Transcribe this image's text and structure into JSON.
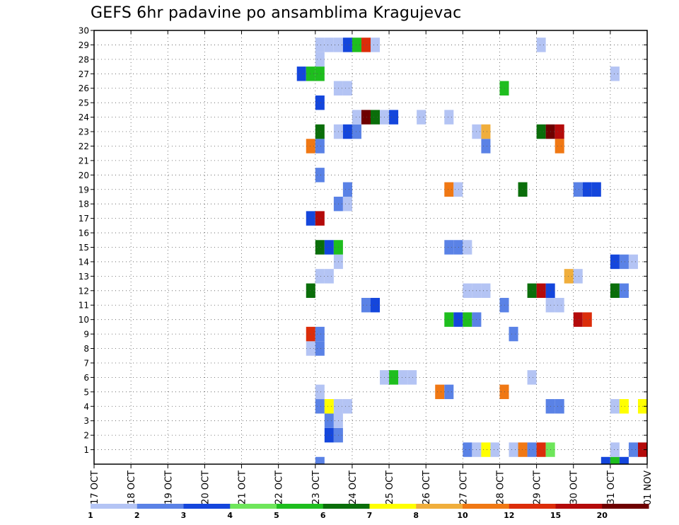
{
  "chart_data": {
    "type": "heatmap",
    "title": "GEFS 6hr padavine po ansamblima Kragujevac",
    "x_tick_labels": [
      "17 OCT",
      "18 OCT",
      "19 OCT",
      "20 OCT",
      "21 OCT",
      "22 OCT",
      "23 OCT",
      "24 OCT",
      "25 OCT",
      "26 OCT",
      "27 OCT",
      "28 OCT",
      "29 OCT",
      "30 OCT",
      "31 OCT",
      "01 NOV"
    ],
    "xlim": [
      0,
      15
    ],
    "y_tick_labels": [
      "1",
      "2",
      "3",
      "4",
      "5",
      "6",
      "7",
      "8",
      "9",
      "10",
      "11",
      "12",
      "13",
      "14",
      "15",
      "16",
      "17",
      "18",
      "19",
      "20",
      "21",
      "22",
      "23",
      "24",
      "25",
      "26",
      "27",
      "28",
      "29",
      "30"
    ],
    "ylim": [
      0,
      30
    ],
    "grid": true,
    "time_step_days": 0.25,
    "legend": {
      "placement": "bottom",
      "labels": [
        "1",
        "2",
        "3",
        "4",
        "5",
        "6",
        "7",
        "8",
        "10",
        "12",
        "15",
        "20"
      ],
      "colors": [
        "#b4c4f4",
        "#5a82e6",
        "#1446dc",
        "#6ee65a",
        "#1ebe1e",
        "#0a6e0a",
        "#ffff00",
        "#f0ae3c",
        "#f07814",
        "#dc2d0a",
        "#b40a0a",
        "#6e0000"
      ]
    },
    "cells": [
      {
        "member": 0,
        "t": 6.0,
        "v": 2
      },
      {
        "member": 0,
        "t": 13.75,
        "v": 3
      },
      {
        "member": 0,
        "t": 14.0,
        "v": 5
      },
      {
        "member": 0,
        "t": 14.25,
        "v": 3
      },
      {
        "member": 1,
        "t": 10.0,
        "v": 2
      },
      {
        "member": 1,
        "t": 10.25,
        "v": 1
      },
      {
        "member": 1,
        "t": 10.5,
        "v": 7
      },
      {
        "member": 1,
        "t": 10.75,
        "v": 1
      },
      {
        "member": 1,
        "t": 11.25,
        "v": 1
      },
      {
        "member": 1,
        "t": 11.5,
        "v": 10
      },
      {
        "member": 1,
        "t": 11.75,
        "v": 2
      },
      {
        "member": 1,
        "t": 12.0,
        "v": 12
      },
      {
        "member": 1,
        "t": 12.25,
        "v": 4
      },
      {
        "member": 1,
        "t": 14.0,
        "v": 1
      },
      {
        "member": 1,
        "t": 14.5,
        "v": 2
      },
      {
        "member": 1,
        "t": 14.75,
        "v": 15
      },
      {
        "member": 2,
        "t": 6.25,
        "v": 3
      },
      {
        "member": 2,
        "t": 6.5,
        "v": 2
      },
      {
        "member": 3,
        "t": 6.25,
        "v": 2
      },
      {
        "member": 3,
        "t": 6.5,
        "v": 1
      },
      {
        "member": 4,
        "t": 6.0,
        "v": 2
      },
      {
        "member": 4,
        "t": 6.25,
        "v": 7
      },
      {
        "member": 4,
        "t": 6.5,
        "v": 1
      },
      {
        "member": 4,
        "t": 6.75,
        "v": 1
      },
      {
        "member": 4,
        "t": 12.25,
        "v": 2
      },
      {
        "member": 4,
        "t": 12.5,
        "v": 2
      },
      {
        "member": 4,
        "t": 14.0,
        "v": 1
      },
      {
        "member": 4,
        "t": 14.25,
        "v": 7
      },
      {
        "member": 4,
        "t": 14.75,
        "v": 7
      },
      {
        "member": 5,
        "t": 6.0,
        "v": 1
      },
      {
        "member": 5,
        "t": 9.25,
        "v": 10
      },
      {
        "member": 5,
        "t": 9.5,
        "v": 2
      },
      {
        "member": 5,
        "t": 11.0,
        "v": 10
      },
      {
        "member": 6,
        "t": 7.75,
        "v": 1
      },
      {
        "member": 6,
        "t": 8.0,
        "v": 5
      },
      {
        "member": 6,
        "t": 8.25,
        "v": 1
      },
      {
        "member": 6,
        "t": 8.5,
        "v": 1
      },
      {
        "member": 6,
        "t": 11.75,
        "v": 1
      },
      {
        "member": 8,
        "t": 5.75,
        "v": 1
      },
      {
        "member": 8,
        "t": 6.0,
        "v": 2
      },
      {
        "member": 9,
        "t": 5.75,
        "v": 12
      },
      {
        "member": 9,
        "t": 6.0,
        "v": 2
      },
      {
        "member": 9,
        "t": 11.25,
        "v": 2
      },
      {
        "member": 10,
        "t": 9.5,
        "v": 5
      },
      {
        "member": 10,
        "t": 9.75,
        "v": 3
      },
      {
        "member": 10,
        "t": 10.0,
        "v": 5
      },
      {
        "member": 10,
        "t": 10.25,
        "v": 2
      },
      {
        "member": 10,
        "t": 13.0,
        "v": 15
      },
      {
        "member": 10,
        "t": 13.25,
        "v": 12
      },
      {
        "member": 11,
        "t": 7.25,
        "v": 2
      },
      {
        "member": 11,
        "t": 7.5,
        "v": 3
      },
      {
        "member": 11,
        "t": 11.0,
        "v": 2
      },
      {
        "member": 11,
        "t": 12.25,
        "v": 1
      },
      {
        "member": 11,
        "t": 12.5,
        "v": 1
      },
      {
        "member": 12,
        "t": 5.75,
        "v": 6
      },
      {
        "member": 12,
        "t": 10.0,
        "v": 1
      },
      {
        "member": 12,
        "t": 10.25,
        "v": 1
      },
      {
        "member": 12,
        "t": 10.5,
        "v": 1
      },
      {
        "member": 12,
        "t": 11.75,
        "v": 6
      },
      {
        "member": 12,
        "t": 12.0,
        "v": 15
      },
      {
        "member": 12,
        "t": 12.25,
        "v": 3
      },
      {
        "member": 12,
        "t": 14.0,
        "v": 6
      },
      {
        "member": 12,
        "t": 14.25,
        "v": 2
      },
      {
        "member": 13,
        "t": 6.0,
        "v": 1
      },
      {
        "member": 13,
        "t": 6.25,
        "v": 1
      },
      {
        "member": 13,
        "t": 12.75,
        "v": 8
      },
      {
        "member": 13,
        "t": 13.0,
        "v": 1
      },
      {
        "member": 14,
        "t": 6.5,
        "v": 1
      },
      {
        "member": 14,
        "t": 14.0,
        "v": 3
      },
      {
        "member": 14,
        "t": 14.25,
        "v": 2
      },
      {
        "member": 14,
        "t": 14.5,
        "v": 1
      },
      {
        "member": 15,
        "t": 6.0,
        "v": 6
      },
      {
        "member": 15,
        "t": 6.25,
        "v": 3
      },
      {
        "member": 15,
        "t": 6.5,
        "v": 5
      },
      {
        "member": 15,
        "t": 9.5,
        "v": 2
      },
      {
        "member": 15,
        "t": 9.75,
        "v": 2
      },
      {
        "member": 15,
        "t": 10.0,
        "v": 1
      },
      {
        "member": 17,
        "t": 5.75,
        "v": 3
      },
      {
        "member": 17,
        "t": 6.0,
        "v": 15
      },
      {
        "member": 18,
        "t": 6.5,
        "v": 2
      },
      {
        "member": 18,
        "t": 6.75,
        "v": 1
      },
      {
        "member": 19,
        "t": 6.75,
        "v": 2
      },
      {
        "member": 19,
        "t": 9.5,
        "v": 10
      },
      {
        "member": 19,
        "t": 9.75,
        "v": 1
      },
      {
        "member": 19,
        "t": 11.5,
        "v": 6
      },
      {
        "member": 19,
        "t": 13.0,
        "v": 2
      },
      {
        "member": 19,
        "t": 13.25,
        "v": 3
      },
      {
        "member": 19,
        "t": 13.5,
        "v": 3
      },
      {
        "member": 20,
        "t": 6.0,
        "v": 2
      },
      {
        "member": 22,
        "t": 5.75,
        "v": 10
      },
      {
        "member": 22,
        "t": 6.0,
        "v": 2
      },
      {
        "member": 22,
        "t": 10.5,
        "v": 2
      },
      {
        "member": 22,
        "t": 12.5,
        "v": 10
      },
      {
        "member": 23,
        "t": 6.0,
        "v": 6
      },
      {
        "member": 23,
        "t": 6.5,
        "v": 1
      },
      {
        "member": 23,
        "t": 6.75,
        "v": 3
      },
      {
        "member": 23,
        "t": 7.0,
        "v": 2
      },
      {
        "member": 23,
        "t": 10.25,
        "v": 1
      },
      {
        "member": 23,
        "t": 10.5,
        "v": 8
      },
      {
        "member": 23,
        "t": 12.0,
        "v": 6
      },
      {
        "member": 23,
        "t": 12.25,
        "v": 20
      },
      {
        "member": 23,
        "t": 12.5,
        "v": 15
      },
      {
        "member": 24,
        "t": 7.0,
        "v": 1
      },
      {
        "member": 24,
        "t": 7.25,
        "v": 20
      },
      {
        "member": 24,
        "t": 7.5,
        "v": 6
      },
      {
        "member": 24,
        "t": 7.75,
        "v": 1
      },
      {
        "member": 24,
        "t": 8.0,
        "v": 3
      },
      {
        "member": 24,
        "t": 8.75,
        "v": 1
      },
      {
        "member": 24,
        "t": 9.5,
        "v": 1
      },
      {
        "member": 25,
        "t": 6.0,
        "v": 3
      },
      {
        "member": 26,
        "t": 6.5,
        "v": 1
      },
      {
        "member": 26,
        "t": 6.75,
        "v": 1
      },
      {
        "member": 26,
        "t": 11.0,
        "v": 5
      },
      {
        "member": 27,
        "t": 5.5,
        "v": 3
      },
      {
        "member": 27,
        "t": 5.75,
        "v": 5
      },
      {
        "member": 27,
        "t": 6.0,
        "v": 5
      },
      {
        "member": 27,
        "t": 14.0,
        "v": 1
      },
      {
        "member": 28,
        "t": 6.0,
        "v": 1
      },
      {
        "member": 29,
        "t": 6.0,
        "v": 1
      },
      {
        "member": 29,
        "t": 6.25,
        "v": 1
      },
      {
        "member": 29,
        "t": 6.5,
        "v": 1
      },
      {
        "member": 29,
        "t": 6.75,
        "v": 3
      },
      {
        "member": 29,
        "t": 7.0,
        "v": 5
      },
      {
        "member": 29,
        "t": 7.25,
        "v": 12
      },
      {
        "member": 29,
        "t": 7.5,
        "v": 1
      },
      {
        "member": 29,
        "t": 12.0,
        "v": 1
      }
    ]
  }
}
